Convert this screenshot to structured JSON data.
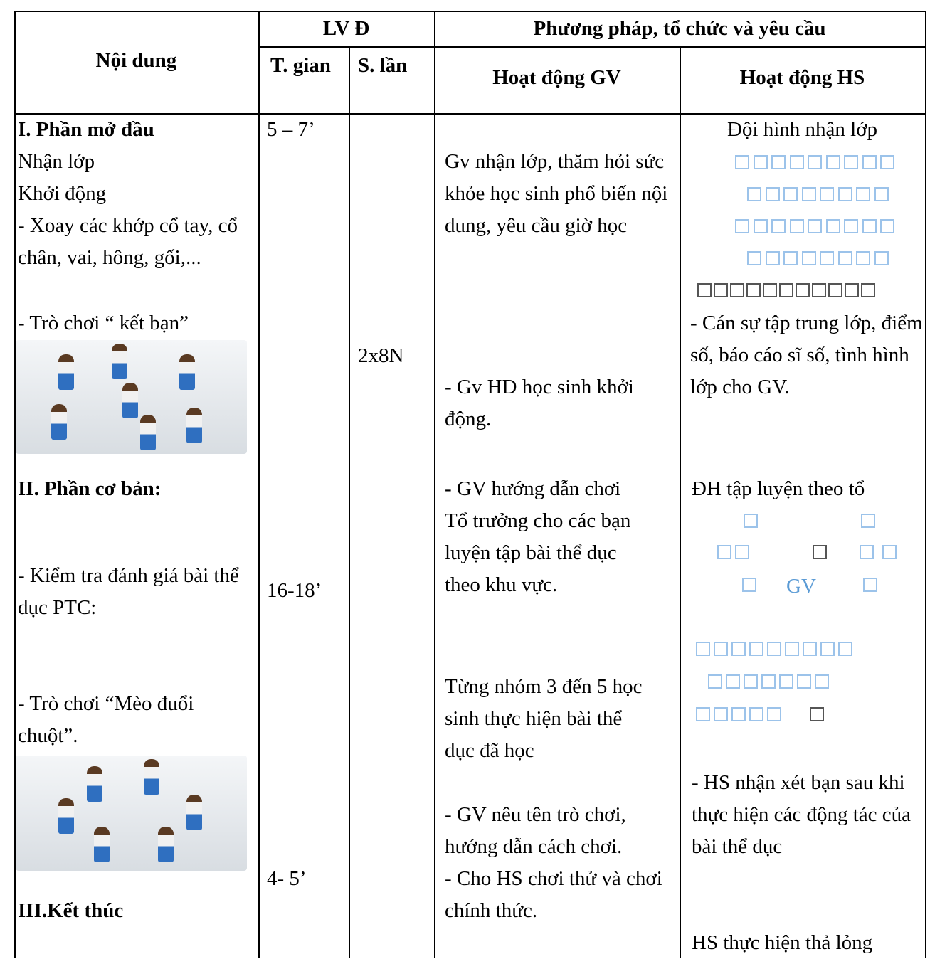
{
  "header": {
    "content": "Nội dung",
    "lvd": "LV Đ",
    "time": "T. gian",
    "reps": "S. lần",
    "method": "Phương pháp, tổ chức và yêu cầu",
    "gv": "Hoạt động GV",
    "hs": "Hoạt động HS"
  },
  "content": [
    "I. Phần mở đầu",
    "Nhận lớp",
    "Khởi động",
    "- Xoay các khớp cổ tay, cổ chân, vai, hông, gối,...",
    "- Trò chơi “ kết bạn”",
    "II. Phần cơ bản:",
    "- Kiểm tra đánh giá bài thể dục PTC:",
    "- Trò chơi “Mèo đuổi chuột”.",
    "III.Kết thúc"
  ],
  "time": [
    "5 – 7’",
    "16-18’",
    "4- 5’"
  ],
  "reps": [
    "2x8N"
  ],
  "gv": [
    "Gv nhận lớp, thăm hỏi sức khỏe học sinh phổ biến nội dung, yêu cầu giờ học",
    "- Gv HD học sinh khởi động.",
    "- GV hướng dẫn chơi",
    "Tổ trưởng cho các bạn luyện tập bài thể dục theo khu vực.",
    "Từng nhóm 3 đến 5 học sinh thực hiện bài thể dục đã học",
    "- GV nêu tên trò chơi, hướng dẫn cách chơi.",
    "- Cho HS chơi thử và chơi chính thức."
  ],
  "hs": [
    "Đội hình nhận lớp",
    "- Cán sự tập trung lớp, điểm số, báo cáo sĩ số, tình hình lớp cho GV.",
    "ĐH tập luyện theo tổ",
    "GV",
    "- HS nhận xét bạn sau khi thực hiện các động tác của bài thể dục",
    "HS thực hiện thả lỏng"
  ]
}
